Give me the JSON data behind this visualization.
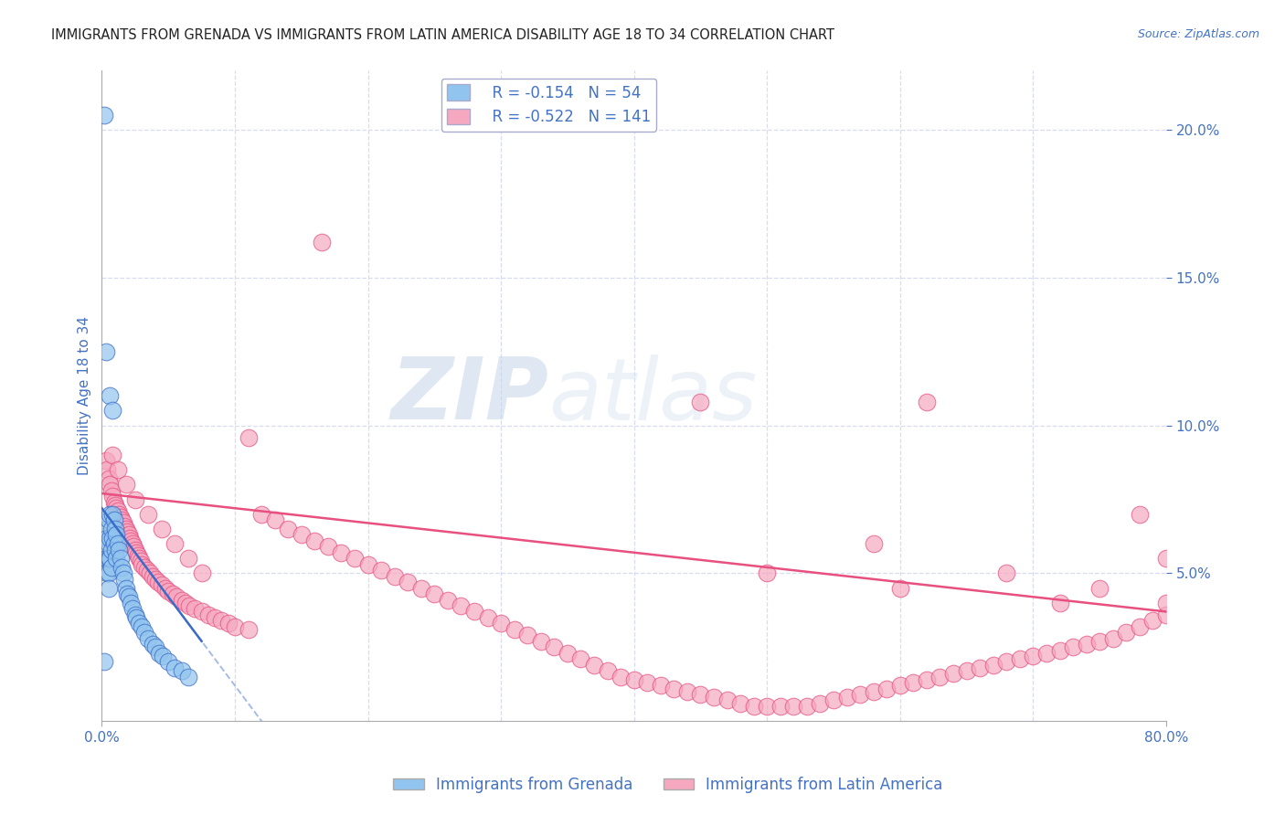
{
  "title": "IMMIGRANTS FROM GRENADA VS IMMIGRANTS FROM LATIN AMERICA DISABILITY AGE 18 TO 34 CORRELATION CHART",
  "source": "Source: ZipAtlas.com",
  "ylabel_left": "Disability Age 18 to 34",
  "legend_grenada_R": "R = -0.154",
  "legend_grenada_N": "N = 54",
  "legend_latam_R": "R = -0.522",
  "legend_latam_N": "N = 141",
  "grenada_color": "#91C4EE",
  "latam_color": "#F5A8C0",
  "grenada_line_color": "#3A6BC8",
  "latam_line_color": "#E85080",
  "axis_label_color": "#4472C4",
  "xlim": [
    0.0,
    0.8
  ],
  "ylim": [
    0.0,
    0.22
  ],
  "xtick_labels": [
    "0.0%",
    "80.0%"
  ],
  "xtick_positions": [
    0.0,
    0.8
  ],
  "yticks_right": [
    0.05,
    0.1,
    0.15,
    0.2
  ],
  "watermark_text": "ZIPatlas",
  "background_color": "#FFFFFF",
  "grid_color": "#D8DCF0",
  "grenada_R": -0.154,
  "grenada_slope": -0.6,
  "grenada_intercept": 0.072,
  "grenada_line_xstart": 0.0,
  "grenada_line_xend": 0.075,
  "grenada_dash_xstart": 0.055,
  "grenada_dash_xend": 0.19,
  "latam_slope": -0.05,
  "latam_intercept": 0.077,
  "latam_line_xstart": 0.0,
  "latam_line_xend": 0.8,
  "grenada_x": [
    0.002,
    0.003,
    0.003,
    0.004,
    0.004,
    0.004,
    0.005,
    0.005,
    0.005,
    0.005,
    0.005,
    0.006,
    0.006,
    0.006,
    0.007,
    0.007,
    0.007,
    0.008,
    0.008,
    0.009,
    0.009,
    0.01,
    0.01,
    0.011,
    0.011,
    0.012,
    0.013,
    0.014,
    0.015,
    0.016,
    0.017,
    0.018,
    0.019,
    0.02,
    0.022,
    0.023,
    0.025,
    0.026,
    0.028,
    0.03,
    0.032,
    0.035,
    0.038,
    0.04,
    0.043,
    0.046,
    0.05,
    0.055,
    0.06,
    0.065,
    0.003,
    0.006,
    0.008,
    0.002
  ],
  "grenada_y": [
    0.205,
    0.065,
    0.055,
    0.062,
    0.055,
    0.05,
    0.068,
    0.06,
    0.055,
    0.05,
    0.045,
    0.07,
    0.062,
    0.055,
    0.065,
    0.058,
    0.052,
    0.07,
    0.062,
    0.068,
    0.06,
    0.065,
    0.058,
    0.063,
    0.055,
    0.06,
    0.058,
    0.055,
    0.052,
    0.05,
    0.048,
    0.045,
    0.043,
    0.042,
    0.04,
    0.038,
    0.036,
    0.035,
    0.033,
    0.032,
    0.03,
    0.028,
    0.026,
    0.025,
    0.023,
    0.022,
    0.02,
    0.018,
    0.017,
    0.015,
    0.125,
    0.11,
    0.105,
    0.02
  ],
  "latam_x": [
    0.003,
    0.004,
    0.005,
    0.006,
    0.007,
    0.008,
    0.009,
    0.01,
    0.011,
    0.012,
    0.013,
    0.014,
    0.015,
    0.016,
    0.017,
    0.018,
    0.019,
    0.02,
    0.021,
    0.022,
    0.023,
    0.024,
    0.025,
    0.026,
    0.027,
    0.028,
    0.029,
    0.03,
    0.032,
    0.034,
    0.036,
    0.038,
    0.04,
    0.042,
    0.045,
    0.048,
    0.05,
    0.053,
    0.056,
    0.06,
    0.063,
    0.066,
    0.07,
    0.075,
    0.08,
    0.085,
    0.09,
    0.095,
    0.1,
    0.11,
    0.12,
    0.13,
    0.14,
    0.15,
    0.16,
    0.17,
    0.18,
    0.19,
    0.2,
    0.21,
    0.22,
    0.23,
    0.24,
    0.25,
    0.26,
    0.27,
    0.28,
    0.29,
    0.3,
    0.31,
    0.32,
    0.33,
    0.34,
    0.35,
    0.36,
    0.37,
    0.38,
    0.39,
    0.4,
    0.41,
    0.42,
    0.43,
    0.44,
    0.45,
    0.46,
    0.47,
    0.48,
    0.49,
    0.5,
    0.51,
    0.52,
    0.53,
    0.54,
    0.55,
    0.56,
    0.57,
    0.58,
    0.59,
    0.6,
    0.61,
    0.62,
    0.63,
    0.64,
    0.65,
    0.66,
    0.67,
    0.68,
    0.69,
    0.7,
    0.71,
    0.72,
    0.73,
    0.74,
    0.75,
    0.76,
    0.77,
    0.78,
    0.79,
    0.8,
    0.008,
    0.012,
    0.018,
    0.025,
    0.035,
    0.045,
    0.055,
    0.065,
    0.075,
    0.45,
    0.62,
    0.165,
    0.58,
    0.68,
    0.75,
    0.78,
    0.8,
    0.5,
    0.6,
    0.72,
    0.8,
    0.11
  ],
  "latam_y": [
    0.088,
    0.085,
    0.082,
    0.08,
    0.078,
    0.076,
    0.074,
    0.073,
    0.072,
    0.071,
    0.07,
    0.069,
    0.068,
    0.067,
    0.066,
    0.065,
    0.064,
    0.063,
    0.062,
    0.061,
    0.06,
    0.059,
    0.058,
    0.057,
    0.056,
    0.055,
    0.054,
    0.053,
    0.052,
    0.051,
    0.05,
    0.049,
    0.048,
    0.047,
    0.046,
    0.045,
    0.044,
    0.043,
    0.042,
    0.041,
    0.04,
    0.039,
    0.038,
    0.037,
    0.036,
    0.035,
    0.034,
    0.033,
    0.032,
    0.031,
    0.07,
    0.068,
    0.065,
    0.063,
    0.061,
    0.059,
    0.057,
    0.055,
    0.053,
    0.051,
    0.049,
    0.047,
    0.045,
    0.043,
    0.041,
    0.039,
    0.037,
    0.035,
    0.033,
    0.031,
    0.029,
    0.027,
    0.025,
    0.023,
    0.021,
    0.019,
    0.017,
    0.015,
    0.014,
    0.013,
    0.012,
    0.011,
    0.01,
    0.009,
    0.008,
    0.007,
    0.006,
    0.005,
    0.005,
    0.005,
    0.005,
    0.005,
    0.006,
    0.007,
    0.008,
    0.009,
    0.01,
    0.011,
    0.012,
    0.013,
    0.014,
    0.015,
    0.016,
    0.017,
    0.018,
    0.019,
    0.02,
    0.021,
    0.022,
    0.023,
    0.024,
    0.025,
    0.026,
    0.027,
    0.028,
    0.03,
    0.032,
    0.034,
    0.036,
    0.09,
    0.085,
    0.08,
    0.075,
    0.07,
    0.065,
    0.06,
    0.055,
    0.05,
    0.108,
    0.108,
    0.162,
    0.06,
    0.05,
    0.045,
    0.07,
    0.055,
    0.05,
    0.045,
    0.04,
    0.04,
    0.096
  ]
}
